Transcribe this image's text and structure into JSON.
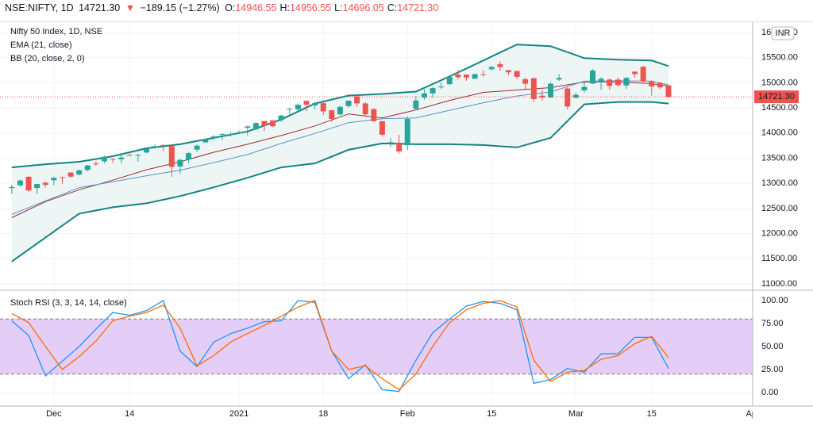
{
  "header": {
    "symbol": "NSE:NIFTY, 1D",
    "last": "14721.30",
    "arrow": "▼",
    "change": "−189.15 (−1.27%)",
    "ohlc": [
      {
        "key": "O:",
        "value": "14946.55"
      },
      {
        "key": "H:",
        "value": "14956.55"
      },
      {
        "key": "L:",
        "value": "14696.05"
      },
      {
        "key": "C:",
        "value": "14721.30"
      }
    ]
  },
  "chart_data": [
    {
      "type": "candlestick",
      "title": "Nifty 50 Index, 1D, NSE",
      "currency": "INR",
      "up_color": "#26a69a",
      "down_color": "#ef5350",
      "open": [
        12906,
        12960,
        13130,
        12907,
        13012,
        13062,
        13122,
        13216,
        13177,
        13265,
        13394,
        13439,
        13488,
        13480,
        13565,
        13567,
        13614,
        13712,
        13764,
        13741,
        13335,
        13473,
        13672,
        13815,
        13910,
        13980,
        13971,
        13997,
        14104,
        14075,
        14240,
        14253,
        14258,
        14474,
        14473,
        14639,
        14550,
        14594,
        14453,
        14371,
        14538,
        14730,
        14590,
        14477,
        14237,
        13810,
        13810,
        13758,
        14482,
        14706,
        14789,
        14919,
        14973,
        15165,
        15164,
        15081,
        15171,
        15270,
        15371,
        15251,
        15234,
        15071,
        15093,
        14744,
        14708,
        15065,
        14888,
        14703,
        14850,
        14984,
        15011,
        15064,
        15064,
        14947,
        15221,
        15321,
        15029,
        14997,
        14946.55
      ],
      "high": [
        12969,
        13079,
        13145,
        12994,
        13035,
        13128,
        13128,
        13216,
        13280,
        13366,
        13435,
        13548,
        13503,
        13579,
        13597,
        13588,
        13692,
        13773,
        13772,
        13777,
        13492,
        13619,
        13771,
        13885,
        13967,
        13998,
        14025,
        14049,
        14148,
        14216,
        14244,
        14256,
        14367,
        14498,
        14590,
        14653,
        14617,
        14618,
        14460,
        14546,
        14652,
        14754,
        14620,
        14491,
        14237,
        13898,
        13966,
        14336,
        14732,
        14868,
        14914,
        15015,
        15159,
        15257,
        15169,
        15188,
        15243,
        15341,
        15432,
        15256,
        15244,
        15111,
        15093,
        14865,
        15011,
        15177,
        14919,
        14806,
        15008,
        15273,
        15115,
        15092,
        15111,
        15117,
        15234,
        15336,
        15051,
        15023,
        14956.55
      ],
      "low": [
        12790,
        12935,
        12833,
        12790,
        12914,
        12963,
        12983,
        13107,
        13153,
        13241,
        13347,
        13400,
        13403,
        13402,
        13549,
        13434,
        13602,
        13683,
        13639,
        13131,
        13192,
        13402,
        13626,
        13811,
        13860,
        13865,
        13937,
        13991,
        13954,
        14049,
        14039,
        14123,
        14221,
        14383,
        14414,
        14435,
        14471,
        14357,
        14222,
        14350,
        14504,
        14517,
        14351,
        14218,
        13929,
        13713,
        13596,
        13662,
        14469,
        14664,
        14711,
        14878,
        14947,
        15064,
        15042,
        15081,
        15122,
        15243,
        15242,
        15150,
        15069,
        14857,
        14620,
        14645,
        14704,
        15035,
        14467,
        14692,
        14805,
        14979,
        14864,
        14862,
        14920,
        14876,
        15100,
        14984,
        14745,
        14877,
        14696.05
      ],
      "close": [
        12926,
        13055,
        12858,
        12987,
        12969,
        13109,
        13113,
        13134,
        13258,
        13356,
        13393,
        13529,
        13478,
        13514,
        13558,
        13567,
        13682,
        13740,
        13761,
        13328,
        13466,
        13601,
        13749,
        13873,
        13932,
        13982,
        13981,
        14018,
        14132,
        14199,
        14146,
        14137,
        14347,
        14485,
        14563,
        14565,
        14595,
        14433,
        14281,
        14521,
        14644,
        14590,
        14372,
        14239,
        13968,
        13818,
        13635,
        14281,
        14648,
        14790,
        14895,
        14924,
        15116,
        15110,
        15106,
        15173,
        15163,
        15315,
        15313,
        15209,
        15119,
        14982,
        14676,
        14707,
        14982,
        15097,
        14529,
        14761,
        14919,
        15245,
        15081,
        14938,
        14956,
        15098,
        15174,
        15031,
        14929,
        14910,
        14721.3
      ],
      "indicators": [
        {
          "name": "EMA (21, close)",
          "lines": [
            {
              "color": "#9c2b2b",
              "x": [
                0,
                4,
                8,
                12,
                16,
                20,
                24,
                28,
                32,
                36,
                40,
                44,
                48,
                52,
                56,
                60,
                64,
                68,
                72,
                76,
                78
              ],
              "values": [
                12317,
                12635,
                12873,
                13063,
                13270,
                13429,
                13619,
                13778,
                13952,
                14143,
                14381,
                14302,
                14460,
                14651,
                14810,
                14857,
                14905,
                15016,
                15016,
                14984,
                14937
              ]
            }
          ]
        },
        {
          "name": "BB (20, close, 2, 0)",
          "fill": "#eef6f5",
          "lines": [
            {
              "color": "#5b8fc7",
              "x": [
                0,
                4,
                8,
                12,
                16,
                20,
                24,
                28,
                32,
                36,
                40,
                44,
                48,
                52,
                56,
                60,
                64,
                68,
                72,
                76,
                78
              ],
              "values": [
                12381,
                12651,
                12913,
                13032,
                13151,
                13262,
                13413,
                13572,
                13794,
                13992,
                14207,
                14286,
                14302,
                14453,
                14603,
                14738,
                14818,
                15032,
                15040,
                15032,
                14960
              ]
            },
            {
              "color": "#138484",
              "x": [
                0,
                4,
                8,
                12,
                16,
                20,
                24,
                28,
                32,
                36,
                40,
                44,
                48,
                52,
                56,
                60,
                64,
                68,
                72,
                76,
                78
              ],
              "values": [
                13317,
                13381,
                13429,
                13540,
                13698,
                13778,
                13905,
                14032,
                14270,
                14587,
                14746,
                14778,
                14825,
                15127,
                15444,
                15762,
                15730,
                15492,
                15460,
                15444,
                15333
              ]
            },
            {
              "color": "#138484",
              "x": [
                0,
                4,
                8,
                12,
                16,
                20,
                24,
                28,
                32,
                36,
                40,
                44,
                48,
                52,
                56,
                60,
                64,
                68,
                72,
                76,
                78
              ],
              "values": [
                11444,
                11921,
                12397,
                12524,
                12603,
                12746,
                12921,
                13111,
                13317,
                13397,
                13667,
                13794,
                13778,
                13778,
                13762,
                13714,
                13905,
                14571,
                14619,
                14619,
                14587
              ]
            }
          ]
        }
      ],
      "last": {
        "value": 14721.3,
        "label": "14721.30"
      },
      "xlim": [
        -1.4,
        88
      ],
      "xticks": [
        {
          "value": 5,
          "label": "Dec"
        },
        {
          "value": 14,
          "label": "14"
        },
        {
          "value": 27,
          "label": "2021"
        },
        {
          "value": 37,
          "label": "18"
        },
        {
          "value": 47,
          "label": "Feb"
        },
        {
          "value": 57,
          "label": "15"
        },
        {
          "value": 67,
          "label": "Mar"
        },
        {
          "value": 76,
          "label": "15"
        },
        {
          "value": 88,
          "label": "Apr"
        }
      ],
      "ylim": [
        10889,
        16206
      ],
      "yticks": [
        {
          "value": 11000,
          "label": "11000.00"
        },
        {
          "value": 11500,
          "label": "11500.00"
        },
        {
          "value": 12000,
          "label": "12000.00"
        },
        {
          "value": 12500,
          "label": "12500.00"
        },
        {
          "value": 13000,
          "label": "13000.00"
        },
        {
          "value": 13500,
          "label": "13500.00"
        },
        {
          "value": 14000,
          "label": "14000.00"
        },
        {
          "value": 14500,
          "label": "14500.00"
        },
        {
          "value": 15000,
          "label": "15000.00"
        },
        {
          "value": 15500,
          "label": "15500.00"
        },
        {
          "value": 16000,
          "label": "16000.00"
        }
      ],
      "grid": true
    },
    {
      "type": "line",
      "title": "Stoch RSI (3, 3, 14, 14, close)",
      "series": [
        {
          "color": "#2196f3",
          "x": [
            0,
            2,
            4,
            6,
            8,
            10,
            12,
            14,
            16,
            18,
            20,
            22,
            24,
            26,
            28,
            30,
            32,
            34,
            36,
            38,
            40,
            42,
            44,
            46,
            48,
            50,
            52,
            54,
            56,
            58,
            60,
            62,
            64,
            66,
            68,
            70,
            72,
            74,
            76,
            78
          ],
          "values": [
            78,
            62,
            18,
            34,
            50,
            69,
            87,
            84,
            89,
            100,
            45,
            28,
            55,
            64,
            70,
            77,
            78,
            100,
            98,
            45,
            15,
            30,
            3,
            1,
            35,
            65,
            80,
            94,
            99,
            97,
            90,
            10,
            14,
            26,
            22,
            42,
            42,
            60,
            60,
            26
          ]
        },
        {
          "color": "#ff6d00",
          "x": [
            0,
            2,
            4,
            6,
            8,
            10,
            12,
            14,
            16,
            18,
            20,
            22,
            24,
            26,
            28,
            30,
            32,
            34,
            36,
            38,
            40,
            42,
            44,
            46,
            48,
            50,
            52,
            54,
            56,
            58,
            60,
            62,
            64,
            66,
            68,
            70,
            72,
            74,
            76,
            78
          ],
          "values": [
            86,
            76,
            50,
            25,
            39,
            56,
            78,
            83,
            87,
            95,
            70,
            29,
            40,
            55,
            64,
            73,
            83,
            93,
            100,
            45,
            25,
            29,
            15,
            3,
            20,
            50,
            76,
            90,
            97,
            100,
            93,
            35,
            12,
            22,
            24,
            36,
            40,
            53,
            61,
            38
          ]
        }
      ],
      "band": [
        20,
        80
      ],
      "band_color": "#e4cdf7",
      "band_line_color": "#787b86",
      "ylim": [
        -14.8,
        110.4
      ],
      "yticks": [
        {
          "value": 0,
          "label": "0.00"
        },
        {
          "value": 25,
          "label": "25.00"
        },
        {
          "value": 50,
          "label": "50.00"
        },
        {
          "value": 75,
          "label": "75.00"
        },
        {
          "value": 100,
          "label": "100.00"
        }
      ],
      "grid": true
    }
  ]
}
